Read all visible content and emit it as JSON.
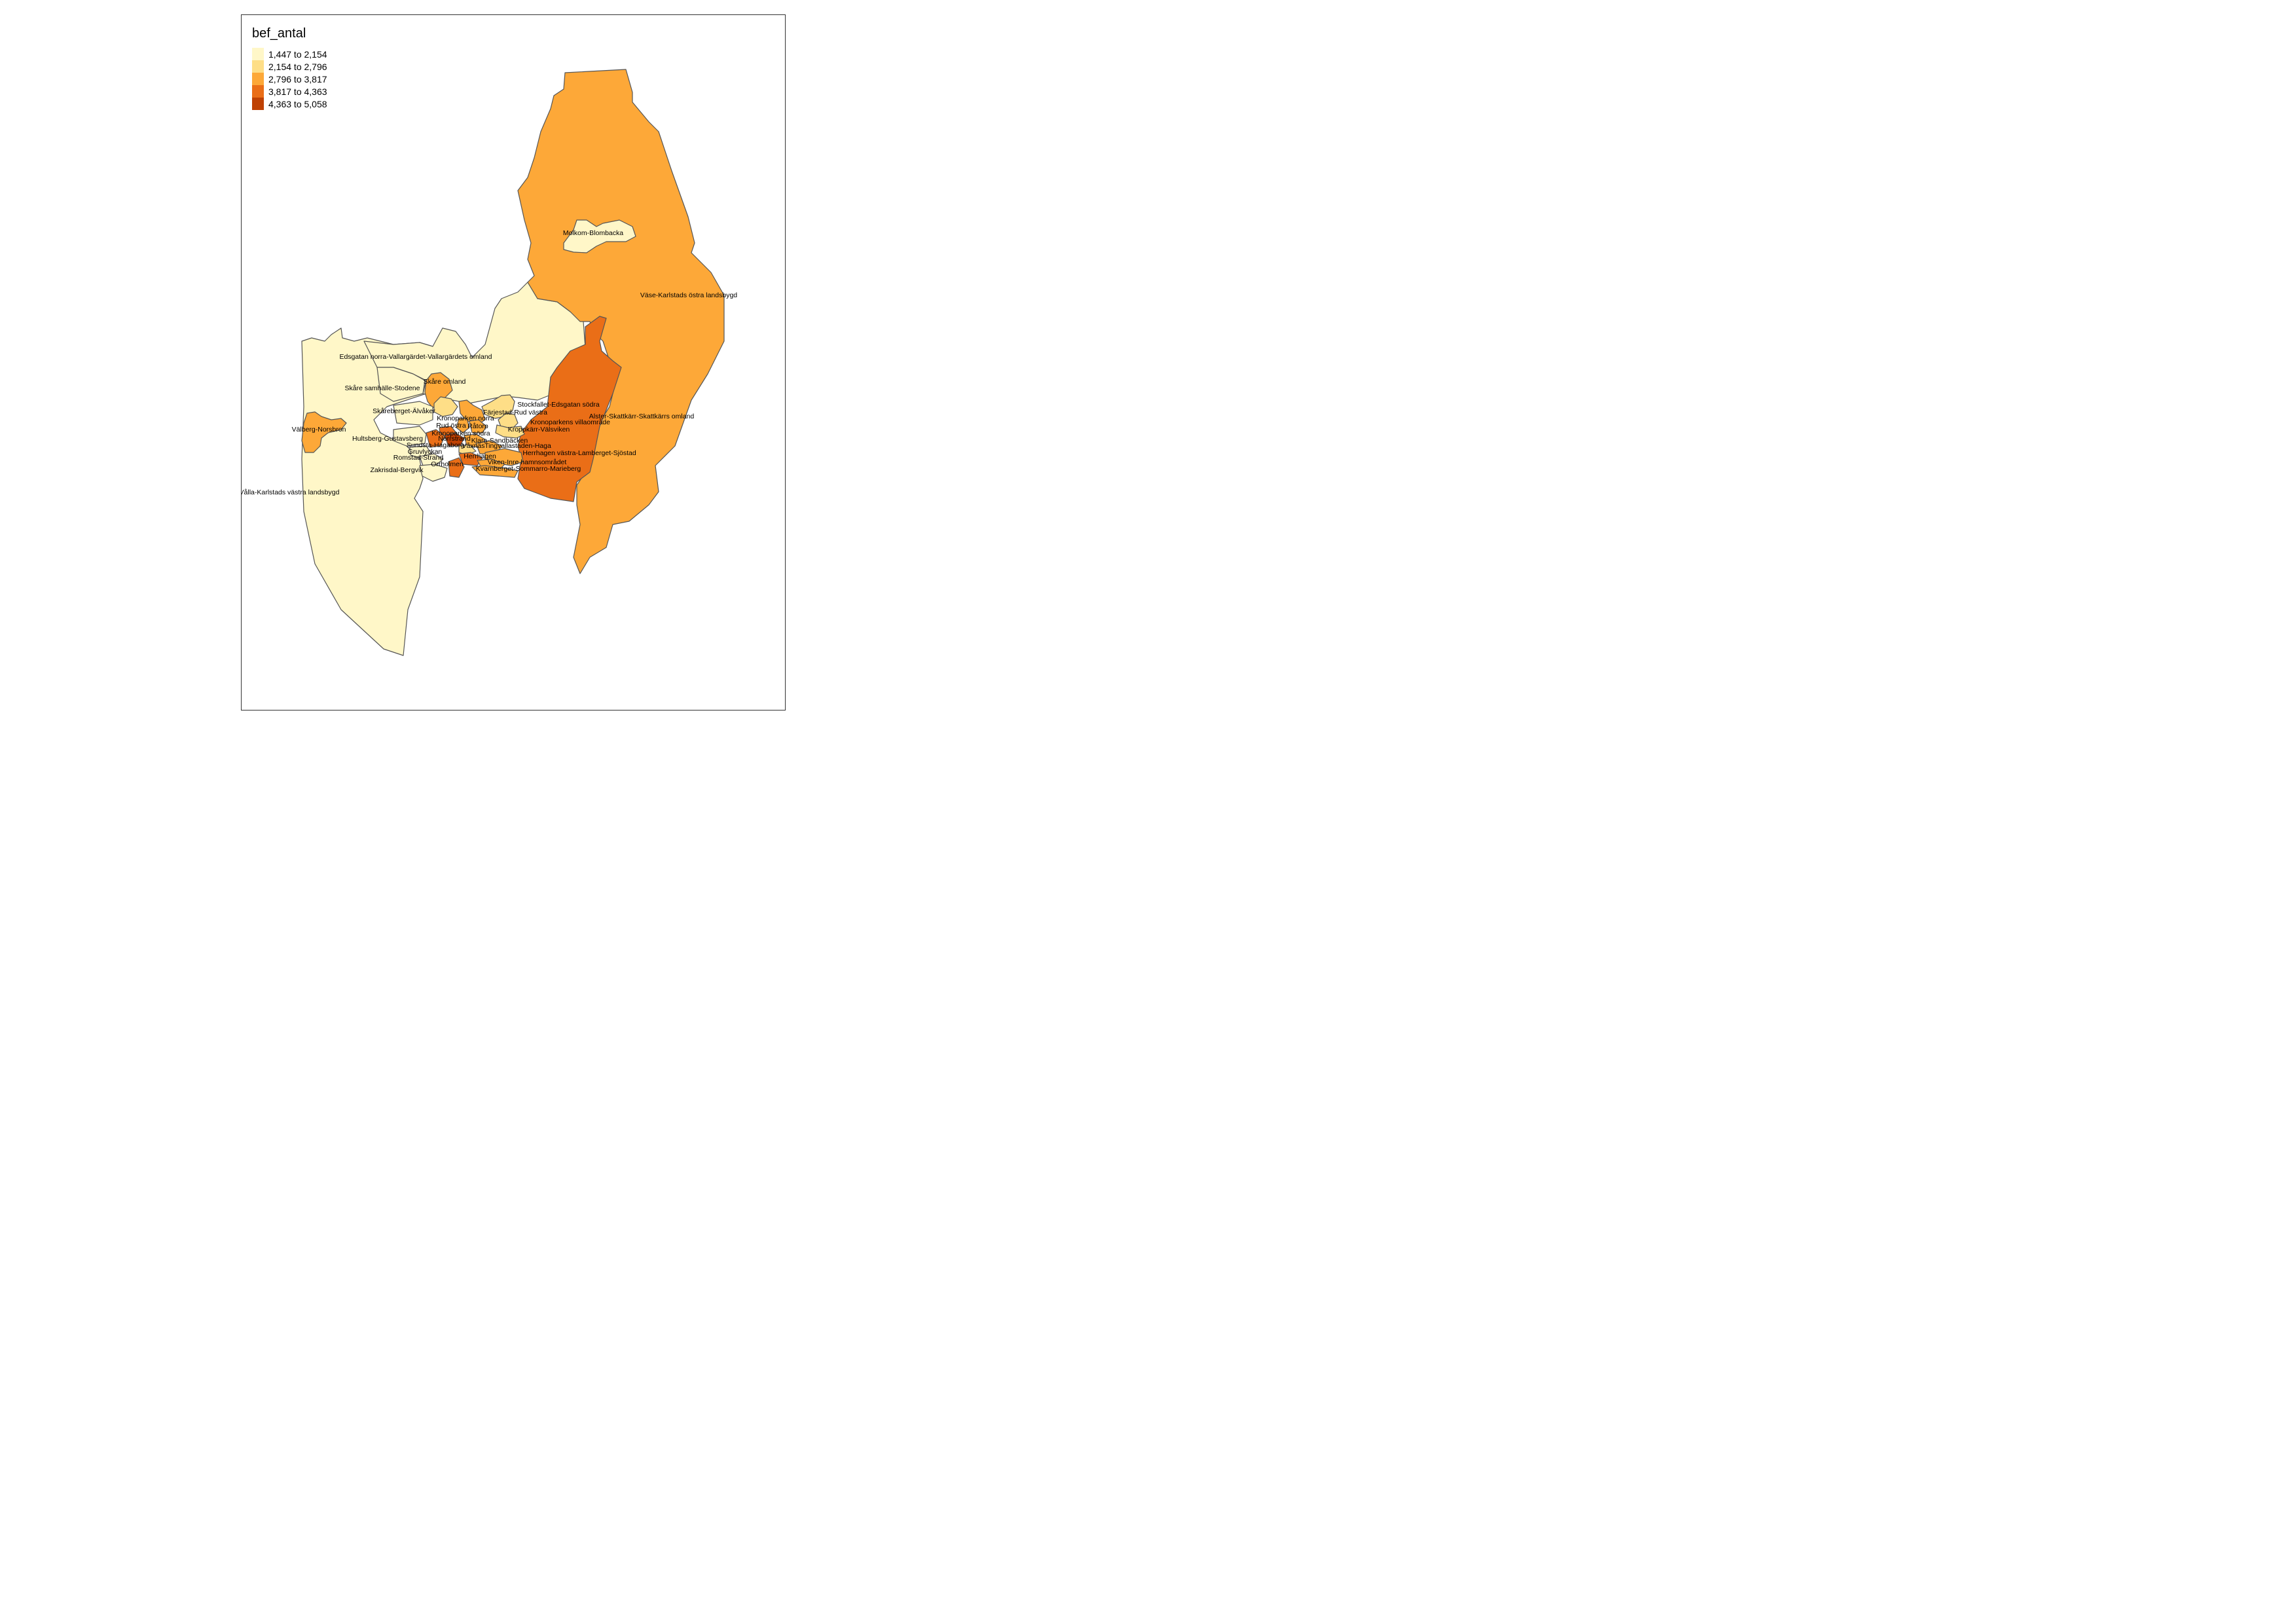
{
  "legend": {
    "title": "bef_antal",
    "classes": [
      {
        "label": "1,447 to 2,154",
        "color": "#fff7c8"
      },
      {
        "label": "2,154 to 2,796",
        "color": "#fede87"
      },
      {
        "label": "2,796 to 3,817",
        "color": "#fda838"
      },
      {
        "label": "3,817 to 4,363",
        "color": "#ea6e17"
      },
      {
        "label": "4,363 to 5,058",
        "color": "#bf4103"
      }
    ]
  },
  "regions": [
    {
      "name": "Väse-Karlstads östra landsbygd",
      "class": 2
    },
    {
      "name": "Molkom-Blombacka",
      "class": 0
    },
    {
      "name": "Edsgatan norra-Vallargärdet-Vallargärdets omland",
      "class": 0
    },
    {
      "name": "Alster-Skattkärr-Skattkärrs omland",
      "class": 3
    },
    {
      "name": "Skåre omland",
      "class": 2
    },
    {
      "name": "Skåre samhälle-Stodene",
      "class": 0
    },
    {
      "name": "Stockfallet-Edsgatan södra",
      "class": 1
    },
    {
      "name": "Färjestad-Rud västra",
      "class": 2
    },
    {
      "name": "Skåreberget-Älvåker",
      "class": 0
    },
    {
      "name": "Kronoparken norra",
      "class": 1
    },
    {
      "name": "Kronoparkens villaområde",
      "class": 1
    },
    {
      "name": "Rud östra",
      "class": 2
    },
    {
      "name": "Råtorp",
      "class": 2
    },
    {
      "name": "Välberg-Norsbron",
      "class": 2
    },
    {
      "name": "Kroppkärr-Välsviken",
      "class": 1
    },
    {
      "name": "Kronoparken södra",
      "class": 3
    },
    {
      "name": "Hultsberg-Gustavsberg",
      "class": 0
    },
    {
      "name": "Norrstrand",
      "class": 4
    },
    {
      "name": "Klara-Sandbäcken",
      "class": 2
    },
    {
      "name": "Sundsta-Hagaborg",
      "class": 3
    },
    {
      "name": "Våxnäs",
      "class": 1
    },
    {
      "name": "Tingvallastaden-Haga",
      "class": 2
    },
    {
      "name": "Gruvlyckan",
      "class": 0
    },
    {
      "name": "Herrhagen västra-Lamberget-Sjöstad",
      "class": 2
    },
    {
      "name": "Romstad-Strand",
      "class": 0
    },
    {
      "name": "Herrhagen",
      "class": 3
    },
    {
      "name": "Orrholmen",
      "class": 3
    },
    {
      "name": "Viken-Inre hamnsområdet",
      "class": 2
    },
    {
      "name": "Kvarnberget-Sommarro-Marieberg",
      "class": 2
    },
    {
      "name": "Zakrisdal-Bergvik",
      "class": 0
    },
    {
      "name": "Vålla-Karlstads västra landsbygd",
      "class": 0
    }
  ]
}
